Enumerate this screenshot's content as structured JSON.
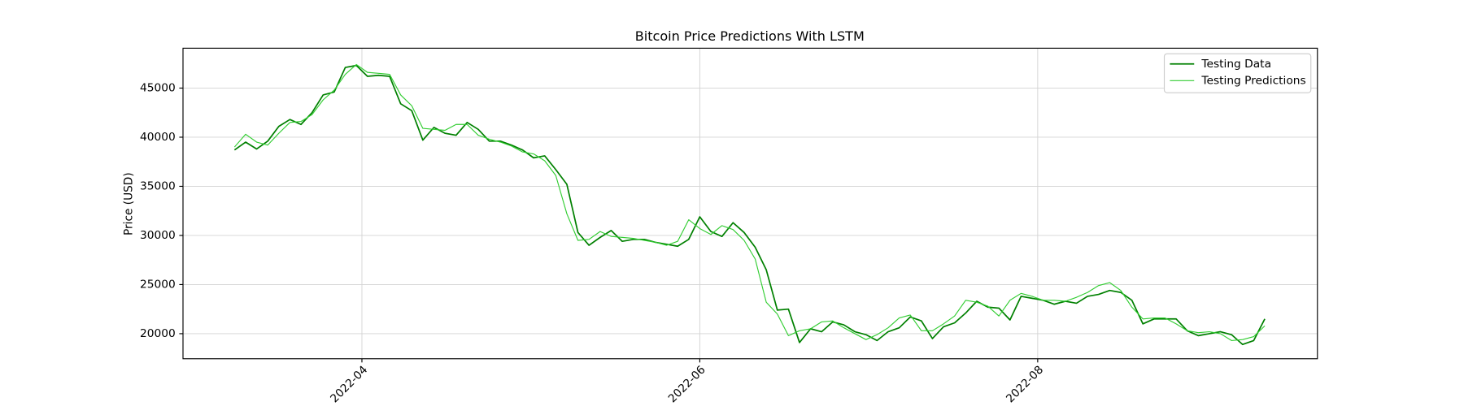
{
  "chart_data": {
    "type": "line",
    "title": "Bitcoin Price Predictions With LSTM",
    "y_label": "Price (USD)",
    "x": [
      0,
      2,
      4,
      6,
      8,
      10,
      12,
      14,
      16,
      18,
      20,
      22,
      24,
      26,
      28,
      30,
      32,
      34,
      36,
      38,
      40,
      42,
      44,
      46,
      48,
      50,
      52,
      54,
      56,
      58,
      60,
      62,
      64,
      66,
      68,
      70,
      72,
      74,
      76,
      78,
      80,
      82,
      84,
      86,
      88,
      90,
      92,
      94,
      96,
      98,
      100,
      102,
      104,
      106,
      108,
      110,
      112,
      114,
      116,
      118,
      120,
      122,
      124,
      126,
      128,
      130,
      132,
      134,
      136,
      138,
      140,
      142,
      144,
      146,
      148,
      150,
      152,
      154,
      156,
      158,
      160,
      162,
      164,
      166,
      168,
      170,
      172,
      174,
      176,
      178,
      180,
      182,
      184,
      186
    ],
    "series": [
      {
        "name": "Testing Data",
        "color": "#008000",
        "values": [
          38700,
          39500,
          38800,
          39600,
          41100,
          41800,
          41300,
          42500,
          44300,
          44600,
          47100,
          47300,
          46200,
          46300,
          46200,
          43400,
          42700,
          39700,
          41000,
          40400,
          40200,
          41500,
          40800,
          39600,
          39600,
          39200,
          38700,
          37900,
          38100,
          36700,
          35200,
          30300,
          29000,
          29800,
          30500,
          29400,
          29600,
          29600,
          29300,
          29100,
          28900,
          29600,
          31900,
          30400,
          29900,
          31300,
          30300,
          28800,
          26500,
          22400,
          22500,
          19100,
          20500,
          20200,
          21200,
          20900,
          20200,
          19900,
          19300,
          20200,
          20600,
          21700,
          21300,
          19500,
          20700,
          21100,
          22100,
          23300,
          22700,
          22600,
          21400,
          23800,
          23600,
          23400,
          23000,
          23300,
          23100,
          23800,
          24000,
          24400,
          24200,
          23400,
          21000,
          21500,
          21500,
          21500,
          20300,
          19800,
          20000,
          20200,
          19900,
          18900,
          19300,
          21500
        ]
      },
      {
        "name": "Testing Predictions",
        "color": "#32cd32",
        "values": [
          39000,
          40300,
          39500,
          39200,
          40400,
          41500,
          41600,
          42300,
          43800,
          44800,
          46400,
          47400,
          46600,
          46500,
          46400,
          44300,
          43200,
          40900,
          40800,
          40700,
          41300,
          41300,
          40200,
          39800,
          39500,
          39100,
          38500,
          38300,
          37600,
          36100,
          32200,
          29500,
          29600,
          30400,
          29900,
          29800,
          29700,
          29500,
          29300,
          29000,
          29400,
          31600,
          30700,
          30100,
          31000,
          30600,
          29500,
          27600,
          23200,
          22000,
          19800,
          20300,
          20500,
          21200,
          21300,
          20600,
          20000,
          19400,
          19900,
          20600,
          21600,
          21900,
          20300,
          20300,
          21000,
          21800,
          23400,
          23200,
          22800,
          21800,
          23400,
          24100,
          23800,
          23400,
          23400,
          23300,
          23700,
          24200,
          24900,
          25200,
          24400,
          22700,
          21500,
          21600,
          21600,
          21000,
          20300,
          20100,
          20200,
          20000,
          19300,
          19400,
          19700,
          20800
        ]
      }
    ],
    "xlim": [
      -9.3,
      195.5
    ],
    "xticks": [
      {
        "value": 23,
        "label": "2022-04"
      },
      {
        "value": 84,
        "label": "2022-06"
      },
      {
        "value": 145,
        "label": "2022-08"
      }
    ],
    "ylim": [
      17450,
      49060
    ],
    "yticks": [
      20000,
      25000,
      30000,
      35000,
      40000,
      45000
    ],
    "grid": true,
    "legend": "upper right"
  }
}
